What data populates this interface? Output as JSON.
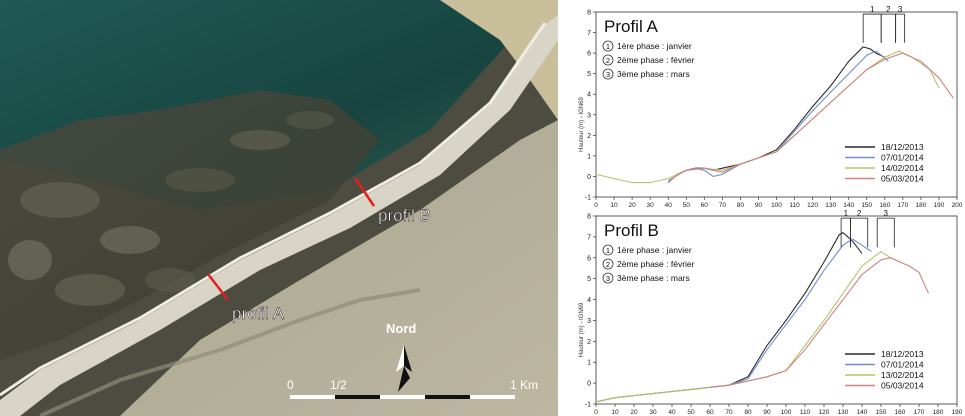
{
  "map": {
    "profile_a_label": "profil A",
    "profile_b_label": "profil B",
    "north_label": "Nord",
    "scale_labels": [
      "0",
      "1/2",
      "1 Km"
    ]
  },
  "colors": {
    "series": [
      "#2a2a2a",
      "#6f8fd0",
      "#b5c46a",
      "#d08080"
    ],
    "profile_line": "#e02020"
  },
  "chart_data": [
    {
      "type": "line",
      "title": "Profil A",
      "ylabel": "Hauteur (m) - IGN69",
      "xlim": [
        0,
        200
      ],
      "ylim": [
        -1,
        8
      ],
      "xticks": [
        0,
        10,
        20,
        30,
        40,
        50,
        60,
        70,
        80,
        90,
        100,
        110,
        120,
        130,
        140,
        150,
        160,
        170,
        180,
        190,
        200
      ],
      "yticks": [
        -1,
        0,
        1,
        2,
        3,
        4,
        5,
        6,
        7,
        8
      ],
      "grid": false,
      "legend_position": "bottom-right",
      "phases": [
        {
          "number": "1",
          "text": "1ère phase : janvier"
        },
        {
          "number": "2",
          "text": "2ème phase : février"
        },
        {
          "number": "3",
          "text": "3ème phase : mars"
        }
      ],
      "brackets": [
        {
          "label": "1",
          "from": 148,
          "to": 158
        },
        {
          "label": "2",
          "from": 158,
          "to": 166
        },
        {
          "label": "3",
          "from": 166,
          "to": 171
        }
      ],
      "series": [
        {
          "name": "18/12/2013",
          "x": [
            40,
            45,
            50,
            55,
            60,
            65,
            70,
            80,
            90,
            100,
            110,
            120,
            130,
            140,
            148,
            152,
            155,
            160
          ],
          "y": [
            -0.3,
            0.1,
            0.3,
            0.4,
            0.4,
            0.3,
            0.4,
            0.6,
            0.9,
            1.3,
            2.3,
            3.4,
            4.4,
            5.6,
            6.3,
            6.2,
            6.0,
            5.8
          ]
        },
        {
          "name": "07/01/2014",
          "x": [
            40,
            45,
            50,
            55,
            60,
            65,
            70,
            80,
            90,
            100,
            110,
            120,
            130,
            140,
            150,
            155,
            158,
            162
          ],
          "y": [
            -0.3,
            0.1,
            0.3,
            0.4,
            0.3,
            0.0,
            0.1,
            0.6,
            0.9,
            1.2,
            2.2,
            3.2,
            4.1,
            5.0,
            5.9,
            6.1,
            5.9,
            5.6
          ]
        },
        {
          "name": "14/02/2014",
          "x": [
            0,
            10,
            20,
            30,
            40,
            50,
            60,
            70,
            80,
            90,
            100,
            110,
            120,
            130,
            140,
            150,
            160,
            168,
            175,
            185,
            190
          ],
          "y": [
            0.1,
            -0.1,
            -0.3,
            -0.3,
            -0.1,
            0.3,
            0.4,
            0.3,
            0.6,
            0.9,
            1.2,
            2.0,
            2.8,
            3.6,
            4.4,
            5.2,
            5.8,
            6.1,
            5.8,
            5.2,
            4.3
          ]
        },
        {
          "name": "05/03/2014",
          "x": [
            40,
            50,
            60,
            70,
            80,
            90,
            100,
            110,
            120,
            130,
            140,
            150,
            160,
            170,
            180,
            190,
            198
          ],
          "y": [
            -0.2,
            0.3,
            0.4,
            0.2,
            0.6,
            0.9,
            1.2,
            2.0,
            2.8,
            3.6,
            4.4,
            5.2,
            5.7,
            6.0,
            5.6,
            4.8,
            3.8
          ]
        }
      ]
    },
    {
      "type": "line",
      "title": "Profil B",
      "ylabel": "Hauteur (m) - IGN69",
      "xlim": [
        0,
        190
      ],
      "ylim": [
        -1,
        8
      ],
      "xticks": [
        0,
        10,
        20,
        30,
        40,
        50,
        60,
        70,
        80,
        90,
        100,
        110,
        120,
        130,
        140,
        150,
        160,
        170,
        180,
        190
      ],
      "yticks": [
        -1,
        0,
        1,
        2,
        3,
        4,
        5,
        6,
        7,
        8
      ],
      "grid": false,
      "legend_position": "bottom-right",
      "phases": [
        {
          "number": "1",
          "text": "1ère phase : janvier"
        },
        {
          "number": "2",
          "text": "2ème phase : février"
        },
        {
          "number": "3",
          "text": "3ème phase : mars"
        }
      ],
      "brackets": [
        {
          "label": "1",
          "from": 129,
          "to": 134
        },
        {
          "label": "2",
          "from": 134,
          "to": 143
        },
        {
          "label": "3",
          "from": 148,
          "to": 157
        }
      ],
      "series": [
        {
          "name": "18/12/2013",
          "x": [
            0,
            10,
            20,
            30,
            40,
            50,
            60,
            70,
            80,
            90,
            100,
            110,
            120,
            128,
            130,
            135,
            140
          ],
          "y": [
            -0.9,
            -0.7,
            -0.6,
            -0.5,
            -0.4,
            -0.3,
            -0.2,
            -0.1,
            0.3,
            1.8,
            3.0,
            4.3,
            5.8,
            7.1,
            7.2,
            6.8,
            6.2
          ]
        },
        {
          "name": "07/01/2014",
          "x": [
            70,
            80,
            90,
            100,
            110,
            120,
            130,
            135,
            140,
            145
          ],
          "y": [
            -0.1,
            0.2,
            1.6,
            2.8,
            4.0,
            5.4,
            6.6,
            6.9,
            6.6,
            6.3
          ]
        },
        {
          "name": "13/02/2014",
          "x": [
            0,
            10,
            20,
            30,
            40,
            50,
            60,
            70,
            80,
            90,
            100,
            110,
            120,
            130,
            140,
            150,
            155,
            160
          ],
          "y": [
            -0.9,
            -0.7,
            -0.6,
            -0.5,
            -0.4,
            -0.3,
            -0.2,
            -0.1,
            0.1,
            0.3,
            0.6,
            1.8,
            3.0,
            4.3,
            5.6,
            6.3,
            6.0,
            5.8
          ]
        },
        {
          "name": "05/03/2014",
          "x": [
            60,
            70,
            80,
            90,
            100,
            110,
            120,
            130,
            140,
            150,
            155,
            160,
            165,
            170,
            175
          ],
          "y": [
            -0.2,
            -0.1,
            0.1,
            0.3,
            0.6,
            1.6,
            2.8,
            4.0,
            5.2,
            5.9,
            6.0,
            5.8,
            5.6,
            5.3,
            4.3
          ]
        }
      ]
    }
  ]
}
